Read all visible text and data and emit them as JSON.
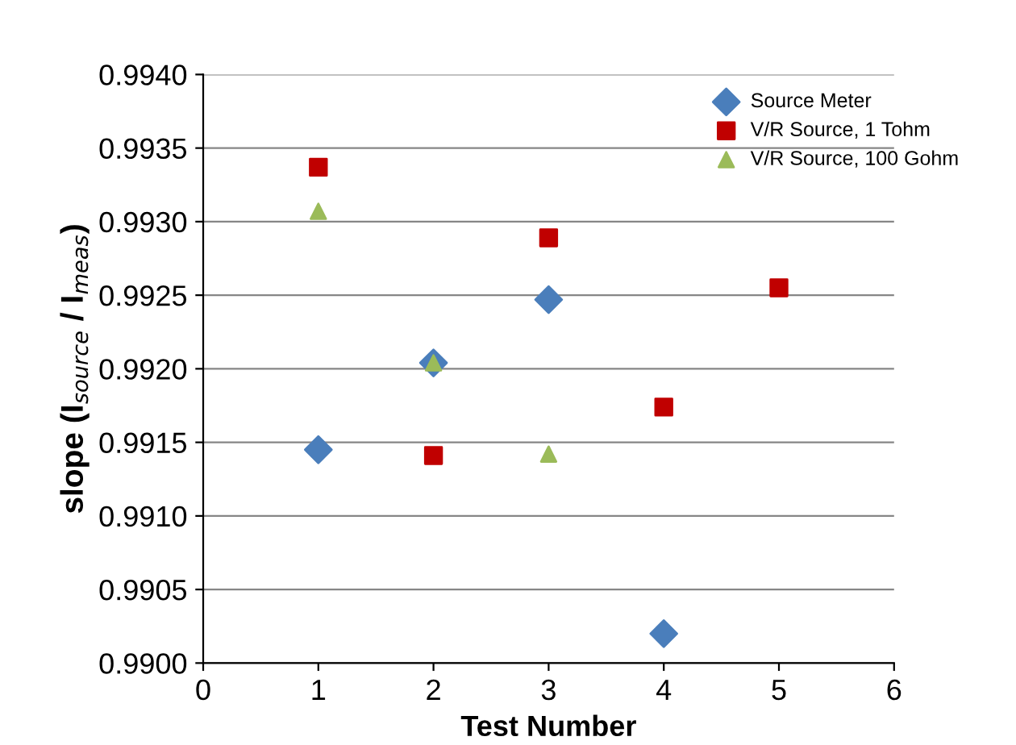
{
  "chart_data": {
    "type": "scatter",
    "xlabel": "Test Number",
    "ylabel": "slope (I$_{source}$ / I$_{meas}$)",
    "xlim": [
      0,
      6
    ],
    "xticks": [
      0,
      1,
      2,
      3,
      4,
      5,
      6
    ],
    "ylim": [
      0.99,
      0.994
    ],
    "yticks": [
      {
        "value": 0.99,
        "label": "0.9900"
      },
      {
        "value": 0.9905,
        "label": "0.9905"
      },
      {
        "value": 0.991,
        "label": "0.9910"
      },
      {
        "value": 0.9915,
        "label": "0.9915"
      },
      {
        "value": 0.992,
        "label": "0.9920"
      },
      {
        "value": 0.9925,
        "label": "0.9925"
      },
      {
        "value": 0.993,
        "label": "0.9930"
      },
      {
        "value": 0.9935,
        "label": "0.9935"
      },
      {
        "value": 0.994,
        "label": "0.9940"
      }
    ],
    "grid": "y",
    "legend": "top right",
    "series": [
      {
        "name": "Source Meter",
        "color": "#4a7ebb",
        "marker": "diamond",
        "x": [
          1,
          2,
          3,
          4
        ],
        "values": [
          0.99145,
          0.99204,
          0.99247,
          0.9902
        ]
      },
      {
        "name": "V/R Source, 1 Tohm",
        "color": "#c00000",
        "marker": "square",
        "x": [
          1,
          2,
          3,
          4,
          5
        ],
        "values": [
          0.99337,
          0.99141,
          0.99289,
          0.99174,
          0.99255
        ]
      },
      {
        "name": "V/R Source, 100 Gohm",
        "color": "#9bbb59",
        "marker": "triangle",
        "x": [
          1,
          2,
          3
        ],
        "values": [
          0.99307,
          0.99204,
          0.99142
        ]
      }
    ]
  }
}
